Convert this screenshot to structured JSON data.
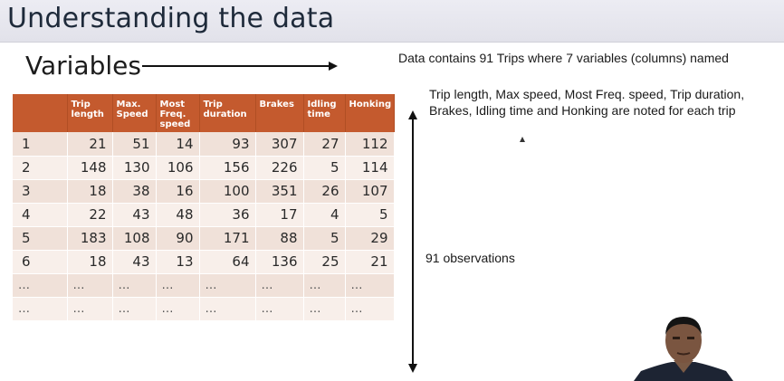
{
  "slide": {
    "title": "Understanding the data",
    "variables_label": "Variables",
    "description": "Data  contains 91 Trips where 7 variables (columns) named",
    "description_detail": "Trip length, Max speed, Most Freq. speed, Trip duration, Brakes, Idling time and Honking are noted for each trip",
    "observations_label": "91 observations"
  },
  "table": {
    "header_color": "#c45a2e",
    "columns": [
      "",
      "Trip length",
      "Max. Speed",
      "Most Freq. speed",
      "Trip duration",
      "Brakes",
      "Idling time",
      "Honking"
    ],
    "rows": [
      [
        "1",
        "21",
        "51",
        "14",
        "93",
        "307",
        "27",
        "112"
      ],
      [
        "2",
        "148",
        "130",
        "106",
        "156",
        "226",
        "5",
        "114"
      ],
      [
        "3",
        "18",
        "38",
        "16",
        "100",
        "351",
        "26",
        "107"
      ],
      [
        "4",
        "22",
        "43",
        "48",
        "36",
        "17",
        "4",
        "5"
      ],
      [
        "5",
        "183",
        "108",
        "90",
        "171",
        "88",
        "5",
        "29"
      ],
      [
        "6",
        "18",
        "43",
        "13",
        "64",
        "136",
        "25",
        "21"
      ],
      [
        "…",
        "…",
        "…",
        "…",
        "…",
        "…",
        "…",
        "…"
      ],
      [
        "…",
        "…",
        "…",
        "…",
        "…",
        "…",
        "…",
        "…"
      ]
    ]
  }
}
